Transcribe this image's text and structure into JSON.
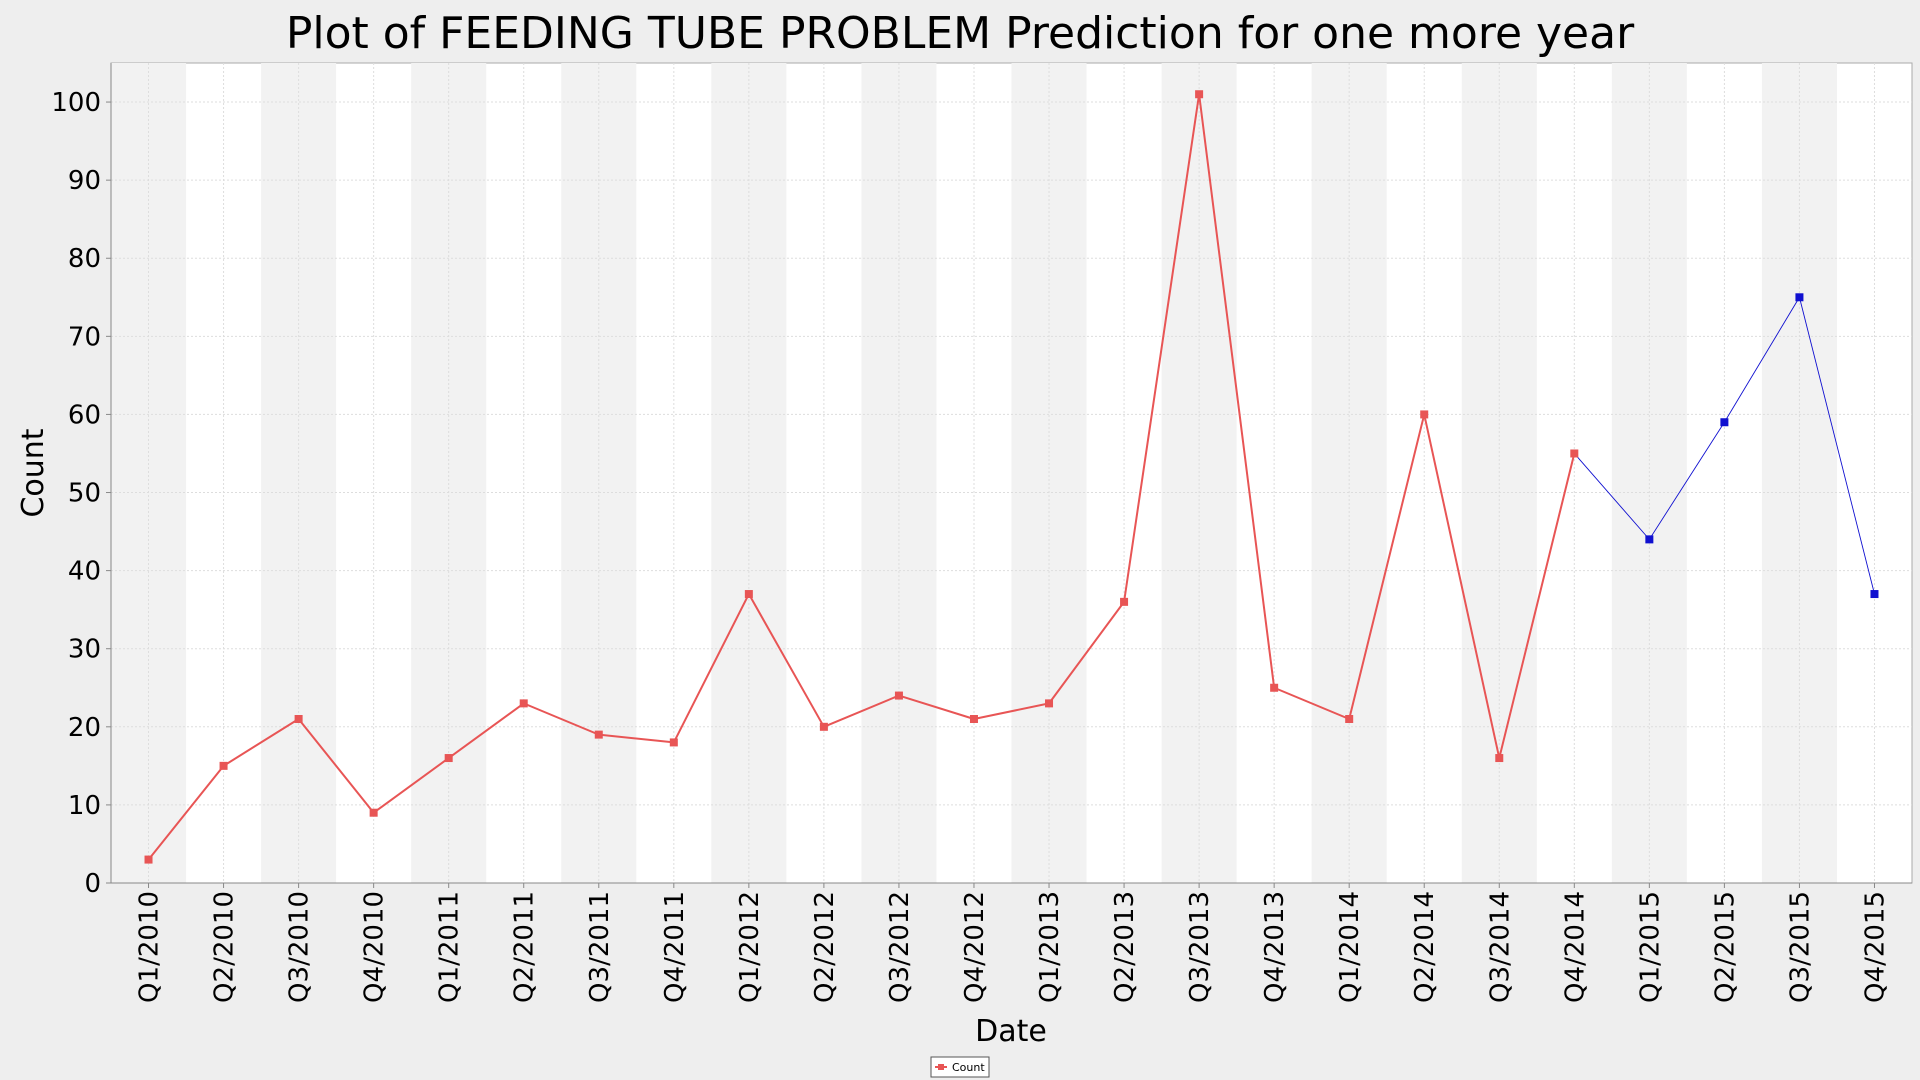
{
  "chart_data": {
    "type": "line",
    "title": "Plot of FEEDING TUBE PROBLEM Prediction for one more year",
    "xlabel": "Date",
    "ylabel": "Count",
    "ylim": [
      0,
      105
    ],
    "yticks": [
      0,
      10,
      20,
      30,
      40,
      50,
      60,
      70,
      80,
      90,
      100
    ],
    "categories": [
      "Q1/2010",
      "Q2/2010",
      "Q3/2010",
      "Q4/2010",
      "Q1/2011",
      "Q2/2011",
      "Q3/2011",
      "Q4/2011",
      "Q1/2012",
      "Q2/2012",
      "Q3/2012",
      "Q4/2012",
      "Q1/2013",
      "Q2/2013",
      "Q3/2013",
      "Q4/2013",
      "Q1/2014",
      "Q2/2014",
      "Q3/2014",
      "Q4/2014",
      "Q1/2015",
      "Q2/2015",
      "Q3/2015",
      "Q4/2015"
    ],
    "series": [
      {
        "name": "Count",
        "color": "#e85555",
        "values": [
          3,
          15,
          21,
          9,
          16,
          23,
          19,
          18,
          37,
          20,
          24,
          21,
          23,
          36,
          101,
          25,
          21,
          60,
          16,
          55,
          null,
          null,
          null,
          null
        ]
      },
      {
        "name": "",
        "color": "#1010d0",
        "values": [
          null,
          null,
          null,
          null,
          null,
          null,
          null,
          null,
          null,
          null,
          null,
          null,
          null,
          null,
          null,
          null,
          null,
          null,
          null,
          55,
          44,
          59,
          75,
          37
        ]
      }
    ],
    "grid": true,
    "legend": "bottom-center"
  }
}
